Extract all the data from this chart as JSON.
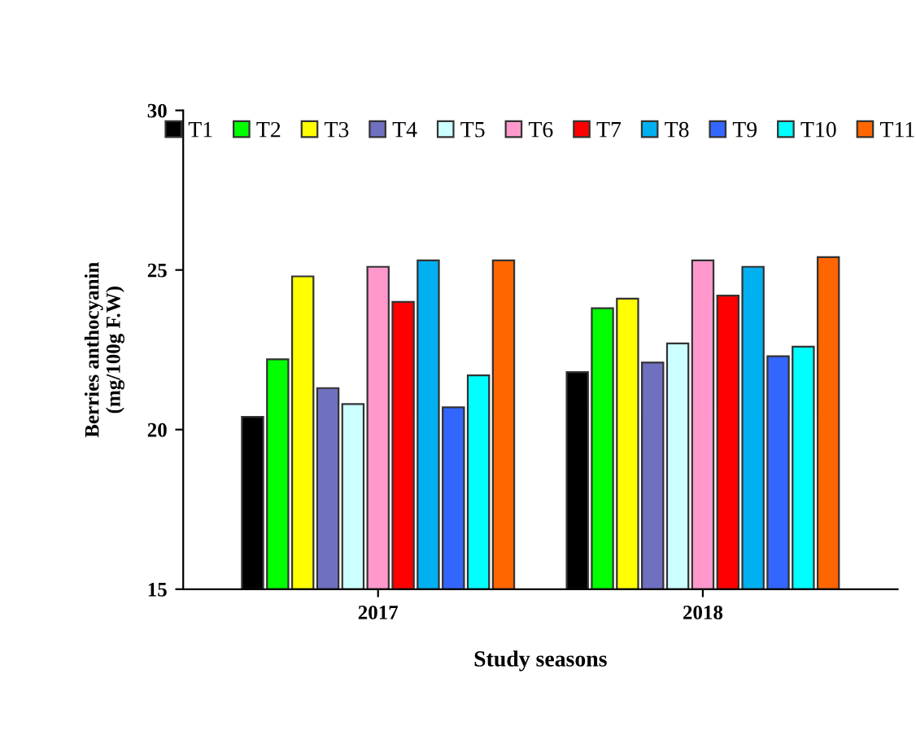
{
  "chart_data": {
    "type": "bar",
    "categories": [
      "2017",
      "2018"
    ],
    "xlabel": "Study seasons",
    "ylabel": "Berries anthocyanin\n(mg/100g F.W)",
    "ylim": [
      15,
      30
    ],
    "yticks": [
      15,
      20,
      25,
      30
    ],
    "grid": false,
    "legend": "top",
    "series": [
      {
        "name": "T1",
        "color": "#000000",
        "values": [
          20.4,
          21.8
        ]
      },
      {
        "name": "T2",
        "color": "#00ff00",
        "values": [
          22.2,
          23.8
        ]
      },
      {
        "name": "T3",
        "color": "#ffff00",
        "values": [
          24.8,
          24.1
        ]
      },
      {
        "name": "T4",
        "color": "#7070c0",
        "values": [
          21.3,
          22.1
        ]
      },
      {
        "name": "T5",
        "color": "#ccffff",
        "values": [
          20.8,
          22.7
        ]
      },
      {
        "name": "T6",
        "color": "#ff99cc",
        "values": [
          25.1,
          25.3
        ]
      },
      {
        "name": "T7",
        "color": "#ff0000",
        "values": [
          24.0,
          24.2
        ]
      },
      {
        "name": "T8",
        "color": "#00b0f0",
        "values": [
          25.3,
          25.1
        ]
      },
      {
        "name": "T9",
        "color": "#3366ff",
        "values": [
          20.7,
          22.3
        ]
      },
      {
        "name": "T10",
        "color": "#00ffff",
        "values": [
          21.7,
          22.6
        ]
      },
      {
        "name": "T11",
        "color": "#ff6600",
        "values": [
          25.3,
          25.4
        ]
      }
    ]
  }
}
